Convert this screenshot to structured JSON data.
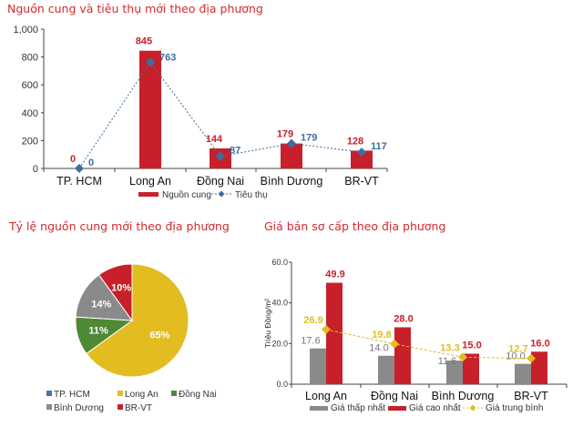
{
  "colors": {
    "red": "#c8202a",
    "blue": "#3c6fa0",
    "gray": "#8a8a8a",
    "yellow": "#e3bc22",
    "green": "#4e8a35",
    "hcm": "#3f78b4"
  },
  "chart_data": [
    {
      "type": "bar",
      "title": "Nguồn cung và tiêu thụ mới theo địa phương",
      "categories": [
        "TP. HCM",
        "Long An",
        "Đồng Nai",
        "Bình Dương",
        "BR-VT"
      ],
      "ylim": [
        0,
        1000
      ],
      "yticks": [
        "0",
        "200",
        "400",
        "600",
        "800",
        "1,000"
      ],
      "ytick_values": [
        0,
        200,
        400,
        600,
        800,
        1000
      ],
      "series": [
        {
          "name": "Nguồn cung",
          "kind": "bar",
          "values": [
            0,
            845,
            144,
            179,
            128
          ]
        },
        {
          "name": "Tiêu thụ",
          "kind": "line",
          "values": [
            0,
            763,
            87,
            179,
            117
          ]
        }
      ],
      "legend": "bottom"
    },
    {
      "type": "pie",
      "title": "Tỷ lệ nguồn cung mới theo địa phương",
      "labels": [
        "TP. HCM",
        "Long An",
        "Đồng Nai",
        "Bình Dương",
        "BR-VT"
      ],
      "values": [
        0,
        65,
        11,
        14,
        10
      ],
      "data_labels": [
        "",
        "65%",
        "11%",
        "14%",
        "10%"
      ],
      "legend": "bottom"
    },
    {
      "type": "bar",
      "title": "Giá bán sơ cấp theo địa phương",
      "ylabel": "Triệu Đồng/m²",
      "categories": [
        "Long An",
        "Đồng Nai",
        "Bình Dương",
        "BR-VT"
      ],
      "ylim": [
        0,
        60
      ],
      "yticks": [
        "0.0",
        "20.0",
        "40.0",
        "60.0"
      ],
      "ytick_values": [
        0,
        20,
        40,
        60
      ],
      "series": [
        {
          "name": "Giá thấp nhất",
          "kind": "bar",
          "values": [
            17.6,
            14.0,
            11.6,
            10.0
          ],
          "labels": [
            "17.6",
            "14.0",
            "11.6",
            "10.0"
          ]
        },
        {
          "name": "Giá cao nhất",
          "kind": "bar",
          "values": [
            49.9,
            28.0,
            15.0,
            16.0
          ],
          "labels": [
            "49.9",
            "28.0",
            "15.0",
            "16.0"
          ]
        },
        {
          "name": "Giá trung bình",
          "kind": "line",
          "values": [
            26.9,
            19.8,
            13.3,
            12.7
          ],
          "labels": [
            "26.9",
            "19.8",
            "13.3",
            "12.7"
          ]
        }
      ],
      "legend": "bottom"
    }
  ]
}
